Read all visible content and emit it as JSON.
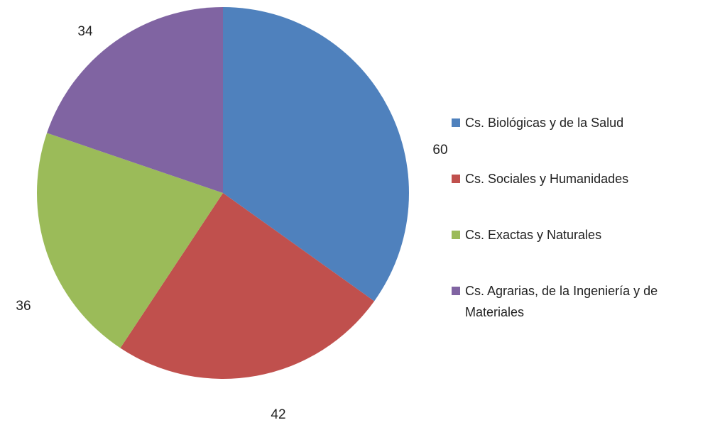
{
  "chart_data": {
    "type": "pie",
    "categories": [
      "Cs. Biológicas y de la Salud",
      "Cs. Sociales y Humanidades",
      "Cs. Exactas y Naturales",
      "Cs. Agrarias, de la Ingeniería y de Materiales"
    ],
    "values": [
      60,
      42,
      36,
      34
    ],
    "colors": [
      "#4f81bd",
      "#c0504d",
      "#9bbb59",
      "#8064a2"
    ],
    "legend": "right"
  }
}
